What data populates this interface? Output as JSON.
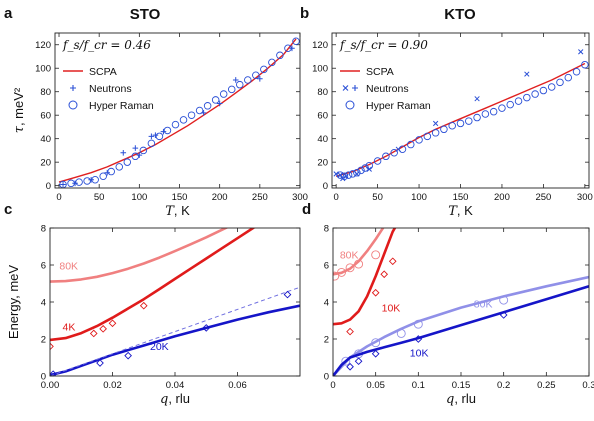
{
  "chart_data": [
    {
      "panel": "a",
      "title": "STO",
      "type": "line",
      "annotation": "f_s/f_cr = 0.46",
      "xlabel": "T, K",
      "ylabel": "τ, meV²",
      "xlim": [
        -5,
        300
      ],
      "ylim": [
        -2,
        130
      ],
      "xticks": [
        0,
        50,
        100,
        150,
        200,
        250,
        300
      ],
      "yticks": [
        0,
        20,
        40,
        60,
        80,
        100,
        120
      ],
      "grid": false,
      "legend_placement": "top-left",
      "series": [
        {
          "name": "SCPA",
          "kind": "line",
          "color": "#e02020",
          "x": [
            0,
            20,
            40,
            60,
            80,
            100,
            120,
            140,
            160,
            180,
            200,
            220,
            240,
            260,
            280,
            295
          ],
          "y": [
            3,
            7,
            11,
            16,
            22,
            28,
            35,
            43,
            51,
            60,
            69,
            79,
            89,
            100,
            112,
            125
          ]
        },
        {
          "name": "Neutrons",
          "kind": "plus",
          "color": "#2a4fd6",
          "x": [
            5,
            20,
            40,
            60,
            80,
            95,
            100,
            115,
            120,
            130,
            180,
            200,
            220,
            250,
            290
          ],
          "y": [
            1,
            2,
            5,
            11,
            28,
            32,
            26,
            42,
            43,
            46,
            62,
            70,
            90,
            91,
            117
          ]
        },
        {
          "name": "Hyper Raman",
          "kind": "circle",
          "color": "#2a4fd6",
          "x": [
            5,
            15,
            25,
            35,
            45,
            55,
            65,
            75,
            85,
            95,
            105,
            115,
            125,
            135,
            145,
            155,
            165,
            175,
            185,
            195,
            205,
            215,
            225,
            235,
            245,
            255,
            265,
            275,
            285,
            295
          ],
          "y": [
            1,
            2,
            3,
            4,
            5,
            8,
            12,
            16,
            20,
            25,
            30,
            36,
            42,
            47,
            52,
            56,
            60,
            64,
            68,
            73,
            78,
            82,
            86,
            90,
            94,
            99,
            105,
            111,
            117,
            123
          ]
        }
      ]
    },
    {
      "panel": "b",
      "title": "KTO",
      "type": "line",
      "annotation": "f_s/f_cr = 0.90",
      "xlabel": "T, K",
      "ylabel": "",
      "xlim": [
        -5,
        305
      ],
      "ylim": [
        -2,
        130
      ],
      "xticks": [
        0,
        50,
        100,
        150,
        200,
        250,
        300
      ],
      "yticks": [
        0,
        20,
        40,
        60,
        80,
        100,
        120
      ],
      "grid": false,
      "legend_placement": "top-left",
      "series": [
        {
          "name": "SCPA",
          "kind": "line",
          "color": "#e02020",
          "x": [
            0,
            20,
            40,
            60,
            80,
            100,
            120,
            140,
            160,
            180,
            200,
            220,
            240,
            260,
            280,
            300
          ],
          "y": [
            8,
            12,
            18,
            25,
            33,
            41,
            48,
            54,
            60,
            66,
            72,
            78,
            84,
            90,
            97,
            104
          ]
        },
        {
          "name": "Neutrons",
          "kind": "cross",
          "color": "#2a4fd6",
          "x": [
            0,
            5,
            8,
            12,
            25,
            40,
            75,
            120,
            170,
            230,
            295
          ],
          "y": [
            10,
            9,
            6,
            8,
            10,
            14,
            31,
            53,
            74,
            95,
            114
          ]
        },
        {
          "name": "Hyper Raman",
          "kind": "circle",
          "color": "#2a4fd6",
          "x": [
            5,
            10,
            15,
            20,
            25,
            30,
            35,
            40,
            50,
            60,
            70,
            80,
            90,
            100,
            110,
            120,
            130,
            140,
            150,
            160,
            170,
            180,
            190,
            200,
            210,
            220,
            230,
            240,
            250,
            260,
            270,
            280,
            290,
            300
          ],
          "y": [
            9,
            8,
            9,
            10,
            11,
            13,
            15,
            17,
            21,
            25,
            28,
            31,
            35,
            39,
            42,
            45,
            48,
            51,
            53,
            55,
            58,
            61,
            63,
            66,
            69,
            72,
            75,
            78,
            81,
            84,
            88,
            92,
            97,
            103
          ]
        }
      ]
    },
    {
      "panel": "c",
      "type": "line",
      "xlabel": "q, rlu",
      "ylabel": "Energy, meV",
      "xlim": [
        0,
        0.08
      ],
      "ylim": [
        0,
        8
      ],
      "xticks": [
        0,
        0.02,
        0.04,
        0.06
      ],
      "yticks": [
        0,
        2,
        4,
        6,
        8
      ],
      "grid": false,
      "series": [
        {
          "name": "80K",
          "kind": "line",
          "color": "#f08080",
          "x": [
            0,
            0.005,
            0.01,
            0.015,
            0.02,
            0.025,
            0.03,
            0.035,
            0.04,
            0.045,
            0.05,
            0.055,
            0.06,
            0.063
          ],
          "y": [
            5.1,
            5.13,
            5.22,
            5.36,
            5.56,
            5.8,
            6.08,
            6.4,
            6.75,
            7.12,
            7.5,
            7.9,
            8.3,
            8.55
          ]
        },
        {
          "name": "4K",
          "kind": "line",
          "color": "#e01b1b",
          "x": [
            0,
            0.005,
            0.01,
            0.015,
            0.02,
            0.025,
            0.03,
            0.035,
            0.04,
            0.045,
            0.05,
            0.055,
            0.06,
            0.065,
            0.07
          ],
          "y": [
            1.95,
            2.05,
            2.32,
            2.7,
            3.15,
            3.65,
            4.15,
            4.7,
            5.25,
            5.8,
            6.35,
            6.9,
            7.45,
            8.0,
            8.55
          ]
        },
        {
          "name": "4K data",
          "kind": "diamond",
          "color": "#e01b1b",
          "x": [
            0,
            0.014,
            0.017,
            0.02,
            0.03
          ],
          "y": [
            1.6,
            2.3,
            2.55,
            2.85,
            3.8
          ]
        },
        {
          "name": "20K",
          "kind": "line",
          "color": "#1515c8",
          "x": [
            0,
            0.005,
            0.01,
            0.015,
            0.02,
            0.03,
            0.04,
            0.05,
            0.06,
            0.07,
            0.08
          ],
          "y": [
            0.05,
            0.25,
            0.55,
            0.85,
            1.15,
            1.65,
            2.15,
            2.6,
            3.05,
            3.45,
            3.8
          ]
        },
        {
          "name": "20K dashed",
          "kind": "dashed",
          "color": "#7070e0",
          "x": [
            0,
            0.08
          ],
          "y": [
            0,
            4.8
          ]
        },
        {
          "name": "20K data",
          "kind": "diamond",
          "color": "#1515c8",
          "x": [
            0.001,
            0.016,
            0.025,
            0.05,
            0.076
          ],
          "y": [
            0.1,
            0.7,
            1.1,
            2.6,
            4.4
          ]
        }
      ],
      "labels": [
        {
          "text": "80K",
          "x": 0.003,
          "y": 5.75,
          "color": "#f08080"
        },
        {
          "text": "4K",
          "x": 0.004,
          "y": 2.45,
          "color": "#e01b1b"
        },
        {
          "text": "20K",
          "x": 0.032,
          "y": 1.4,
          "color": "#1515c8"
        }
      ]
    },
    {
      "panel": "d",
      "type": "line",
      "xlabel": "q, rlu",
      "ylabel": "",
      "xlim": [
        0,
        0.3
      ],
      "ylim": [
        0,
        8
      ],
      "xticks": [
        0,
        0.05,
        0.1,
        0.15,
        0.2,
        0.25,
        0.3
      ],
      "yticks": [
        0,
        2,
        4,
        6,
        8
      ],
      "grid": false,
      "series": [
        {
          "name": "80K",
          "kind": "line",
          "color": "#f08080",
          "x": [
            0,
            0.01,
            0.02,
            0.03,
            0.04,
            0.05,
            0.06,
            0.065
          ],
          "y": [
            5.5,
            5.58,
            5.8,
            6.2,
            6.75,
            7.4,
            8.1,
            8.5
          ]
        },
        {
          "name": "80K data",
          "kind": "circle",
          "color": "#f08080",
          "x": [
            0.002,
            0.01,
            0.02,
            0.03,
            0.05
          ],
          "y": [
            5.4,
            5.6,
            5.85,
            6.05,
            6.55
          ]
        },
        {
          "name": "10K red",
          "kind": "line",
          "color": "#e01b1b",
          "x": [
            0,
            0.01,
            0.02,
            0.03,
            0.04,
            0.05,
            0.06,
            0.07,
            0.08
          ],
          "y": [
            2.8,
            2.85,
            3.05,
            3.5,
            4.3,
            5.4,
            6.6,
            7.8,
            8.6
          ]
        },
        {
          "name": "10K red data",
          "kind": "diamond",
          "color": "#e01b1b",
          "x": [
            0.02,
            0.05,
            0.06,
            0.07
          ],
          "y": [
            2.4,
            4.5,
            5.5,
            6.2
          ]
        },
        {
          "name": "80K blue",
          "kind": "line",
          "color": "#9090e8",
          "x": [
            0,
            0.02,
            0.04,
            0.06,
            0.08,
            0.1,
            0.15,
            0.2,
            0.25,
            0.3
          ],
          "y": [
            0,
            1.0,
            1.6,
            2.1,
            2.55,
            2.95,
            3.7,
            4.3,
            4.85,
            5.35
          ]
        },
        {
          "name": "80K blue data",
          "kind": "circle",
          "color": "#9090e8",
          "x": [
            0.015,
            0.03,
            0.05,
            0.08,
            0.1,
            0.2
          ],
          "y": [
            0.8,
            1.2,
            1.8,
            2.3,
            2.8,
            4.1
          ]
        },
        {
          "name": "10K blue",
          "kind": "line",
          "color": "#1515c8",
          "x": [
            0,
            0.01,
            0.02,
            0.04,
            0.06,
            0.08,
            0.1,
            0.15,
            0.2,
            0.25,
            0.3
          ],
          "y": [
            0,
            0.6,
            1.0,
            1.3,
            1.55,
            1.8,
            2.05,
            2.75,
            3.45,
            4.15,
            4.85
          ]
        },
        {
          "name": "10K blue data",
          "kind": "diamond",
          "color": "#1515c8",
          "x": [
            0.02,
            0.03,
            0.05,
            0.1,
            0.2
          ],
          "y": [
            0.5,
            0.8,
            1.2,
            2.0,
            3.3
          ]
        }
      ],
      "labels": [
        {
          "text": "80K",
          "x": 0.008,
          "y": 6.35,
          "color": "#f08080"
        },
        {
          "text": "10K",
          "x": 0.057,
          "y": 3.5,
          "color": "#e01b1b"
        },
        {
          "text": "80K",
          "x": 0.165,
          "y": 3.7,
          "color": "#9090e8"
        },
        {
          "text": "10K",
          "x": 0.09,
          "y": 1.05,
          "color": "#1515c8"
        }
      ]
    }
  ]
}
